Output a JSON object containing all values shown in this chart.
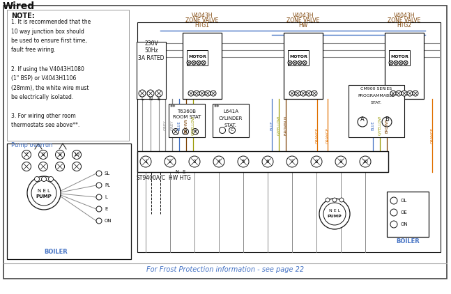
{
  "title": "Wired",
  "bg_color": "#ffffff",
  "footer_text": "For Frost Protection information - see page 22",
  "blue": "#4472c4",
  "brown": "#7B3F00",
  "grey": "#888888",
  "gyellow": "#999900",
  "orange": "#E07000",
  "black": "#111111",
  "note_lines": [
    "NOTE:",
    "1. It is recommended that the",
    "10 way junction box should",
    "be used to ensure first time,",
    "fault free wiring.",
    "",
    "2. If using the V4043H1080",
    "(1\" BSP) or V4043H1106",
    "(28mm), the white wire must",
    "be electrically isolated.",
    "",
    "3. For wiring other room",
    "thermostats see above**."
  ]
}
